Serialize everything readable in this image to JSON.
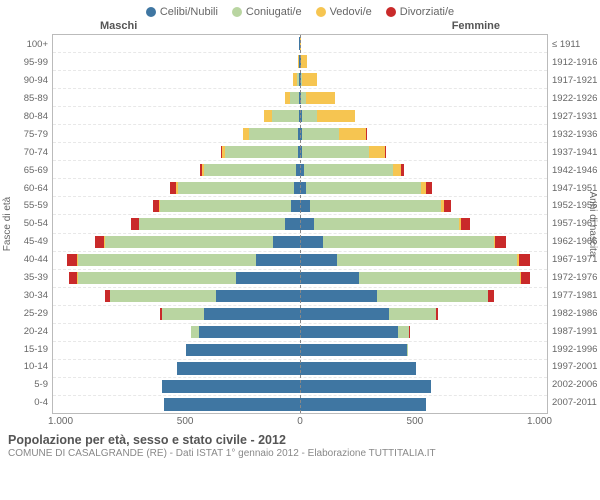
{
  "legend": [
    {
      "label": "Celibi/Nubili",
      "color": "#3f76a2"
    },
    {
      "label": "Coniugati/e",
      "color": "#b9d5a1"
    },
    {
      "label": "Vedovi/e",
      "color": "#f6c551"
    },
    {
      "label": "Divorziati/e",
      "color": "#c92a2a"
    }
  ],
  "header": {
    "male": "Maschi",
    "female": "Femmine"
  },
  "axis": {
    "left_title": "Fasce di età",
    "right_title": "Anni di nascita",
    "x_ticks": [
      "1.000",
      "500",
      "0",
      "500",
      "1.000"
    ],
    "x_max": 1000
  },
  "age_labels": [
    "100+",
    "95-99",
    "90-94",
    "85-89",
    "80-84",
    "75-79",
    "70-74",
    "65-69",
    "60-64",
    "55-59",
    "50-54",
    "45-49",
    "40-44",
    "35-39",
    "30-34",
    "25-29",
    "20-24",
    "15-19",
    "10-14",
    "5-9",
    "0-4"
  ],
  "year_labels": [
    "≤ 1911",
    "1912-1916",
    "1917-1921",
    "1922-1926",
    "1927-1931",
    "1932-1936",
    "1937-1941",
    "1942-1946",
    "1947-1951",
    "1952-1956",
    "1957-1961",
    "1962-1966",
    "1967-1971",
    "1972-1976",
    "1977-1981",
    "1982-1986",
    "1987-1991",
    "1992-1996",
    "1997-2001",
    "2002-2006",
    "2007-2011"
  ],
  "colors": {
    "celibi": "#3f76a2",
    "coniugati": "#b9d5a1",
    "vedovi": "#f6c551",
    "divorziati": "#c92a2a",
    "grid": "#e8e8e8",
    "border": "#bbbbbb",
    "center": "#888888",
    "bg": "#ffffff"
  },
  "rows": [
    {
      "m": [
        3,
        0,
        0,
        0
      ],
      "f": [
        0,
        0,
        5,
        0
      ]
    },
    {
      "m": [
        3,
        2,
        5,
        0
      ],
      "f": [
        3,
        0,
        25,
        0
      ]
    },
    {
      "m": [
        3,
        10,
        15,
        0
      ],
      "f": [
        5,
        5,
        60,
        0
      ]
    },
    {
      "m": [
        5,
        35,
        20,
        0
      ],
      "f": [
        5,
        18,
        120,
        0
      ]
    },
    {
      "m": [
        5,
        110,
        30,
        0
      ],
      "f": [
        8,
        60,
        155,
        0
      ]
    },
    {
      "m": [
        8,
        200,
        22,
        2
      ],
      "f": [
        8,
        150,
        110,
        3
      ]
    },
    {
      "m": [
        10,
        295,
        12,
        3
      ],
      "f": [
        10,
        270,
        65,
        5
      ]
    },
    {
      "m": [
        15,
        375,
        8,
        6
      ],
      "f": [
        15,
        360,
        35,
        10
      ]
    },
    {
      "m": [
        25,
        470,
        6,
        25
      ],
      "f": [
        25,
        465,
        20,
        25
      ]
    },
    {
      "m": [
        35,
        530,
        4,
        25
      ],
      "f": [
        40,
        530,
        12,
        28
      ]
    },
    {
      "m": [
        60,
        590,
        3,
        30
      ],
      "f": [
        55,
        590,
        8,
        35
      ]
    },
    {
      "m": [
        110,
        680,
        2,
        38
      ],
      "f": [
        95,
        690,
        6,
        45
      ]
    },
    {
      "m": [
        180,
        720,
        2,
        40
      ],
      "f": [
        150,
        730,
        5,
        48
      ]
    },
    {
      "m": [
        260,
        640,
        1,
        35
      ],
      "f": [
        240,
        650,
        3,
        40
      ]
    },
    {
      "m": [
        340,
        430,
        0,
        20
      ],
      "f": [
        310,
        450,
        2,
        25
      ]
    },
    {
      "m": [
        390,
        170,
        0,
        6
      ],
      "f": [
        360,
        190,
        0,
        10
      ]
    },
    {
      "m": [
        410,
        30,
        0,
        0
      ],
      "f": [
        395,
        45,
        0,
        2
      ]
    },
    {
      "m": [
        460,
        0,
        0,
        0
      ],
      "f": [
        435,
        3,
        0,
        0
      ]
    },
    {
      "m": [
        500,
        0,
        0,
        0
      ],
      "f": [
        470,
        0,
        0,
        0
      ]
    },
    {
      "m": [
        560,
        0,
        0,
        0
      ],
      "f": [
        530,
        0,
        0,
        0
      ]
    },
    {
      "m": [
        550,
        0,
        0,
        0
      ],
      "f": [
        510,
        0,
        0,
        0
      ]
    }
  ],
  "footer": {
    "title": "Popolazione per età, sesso e stato civile - 2012",
    "subtitle": "COMUNE DI CASALGRANDE (RE) - Dati ISTAT 1° gennaio 2012 - Elaborazione TUTTITALIA.IT"
  }
}
